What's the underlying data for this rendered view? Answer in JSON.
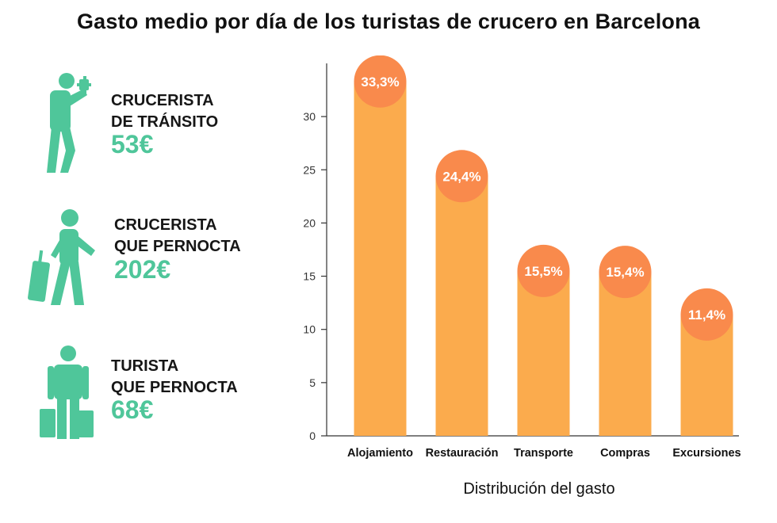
{
  "title": "Gasto medio por día de los turistas de crucero en Barcelona",
  "colors": {
    "accent_green": "#4fc69a",
    "bar": "#fbab4d",
    "circle": "#f98a4c"
  },
  "personas": [
    {
      "icon": "photographer-tourist-icon",
      "line1": "CRUCERISTA",
      "line2": "DE TRÁNSITO",
      "amount": "53€"
    },
    {
      "icon": "traveler-with-suitcase-icon",
      "line1": "CRUCERISTA",
      "line2": "QUE PERNOCTA",
      "amount": "202€"
    },
    {
      "icon": "tourist-with-bags-icon",
      "line1": "TURISTA",
      "line2": "QUE PERNOCTA",
      "amount": "68€"
    }
  ],
  "chart_data": {
    "type": "bar",
    "title": "",
    "xlabel": "Distribución del gasto",
    "ylabel": "",
    "categories": [
      "Alojamiento",
      "Restauración",
      "Transporte",
      "Compras",
      "Excursiones"
    ],
    "values": [
      33.3,
      24.4,
      15.5,
      15.4,
      11.4
    ],
    "value_labels": [
      "33,3%",
      "24,4%",
      "15,5%",
      "15,4%",
      "11,4%"
    ],
    "yticks": [
      0,
      5,
      10,
      15,
      20,
      25,
      30
    ],
    "ylim": [
      0,
      35
    ],
    "grid": false,
    "legend": "none"
  }
}
